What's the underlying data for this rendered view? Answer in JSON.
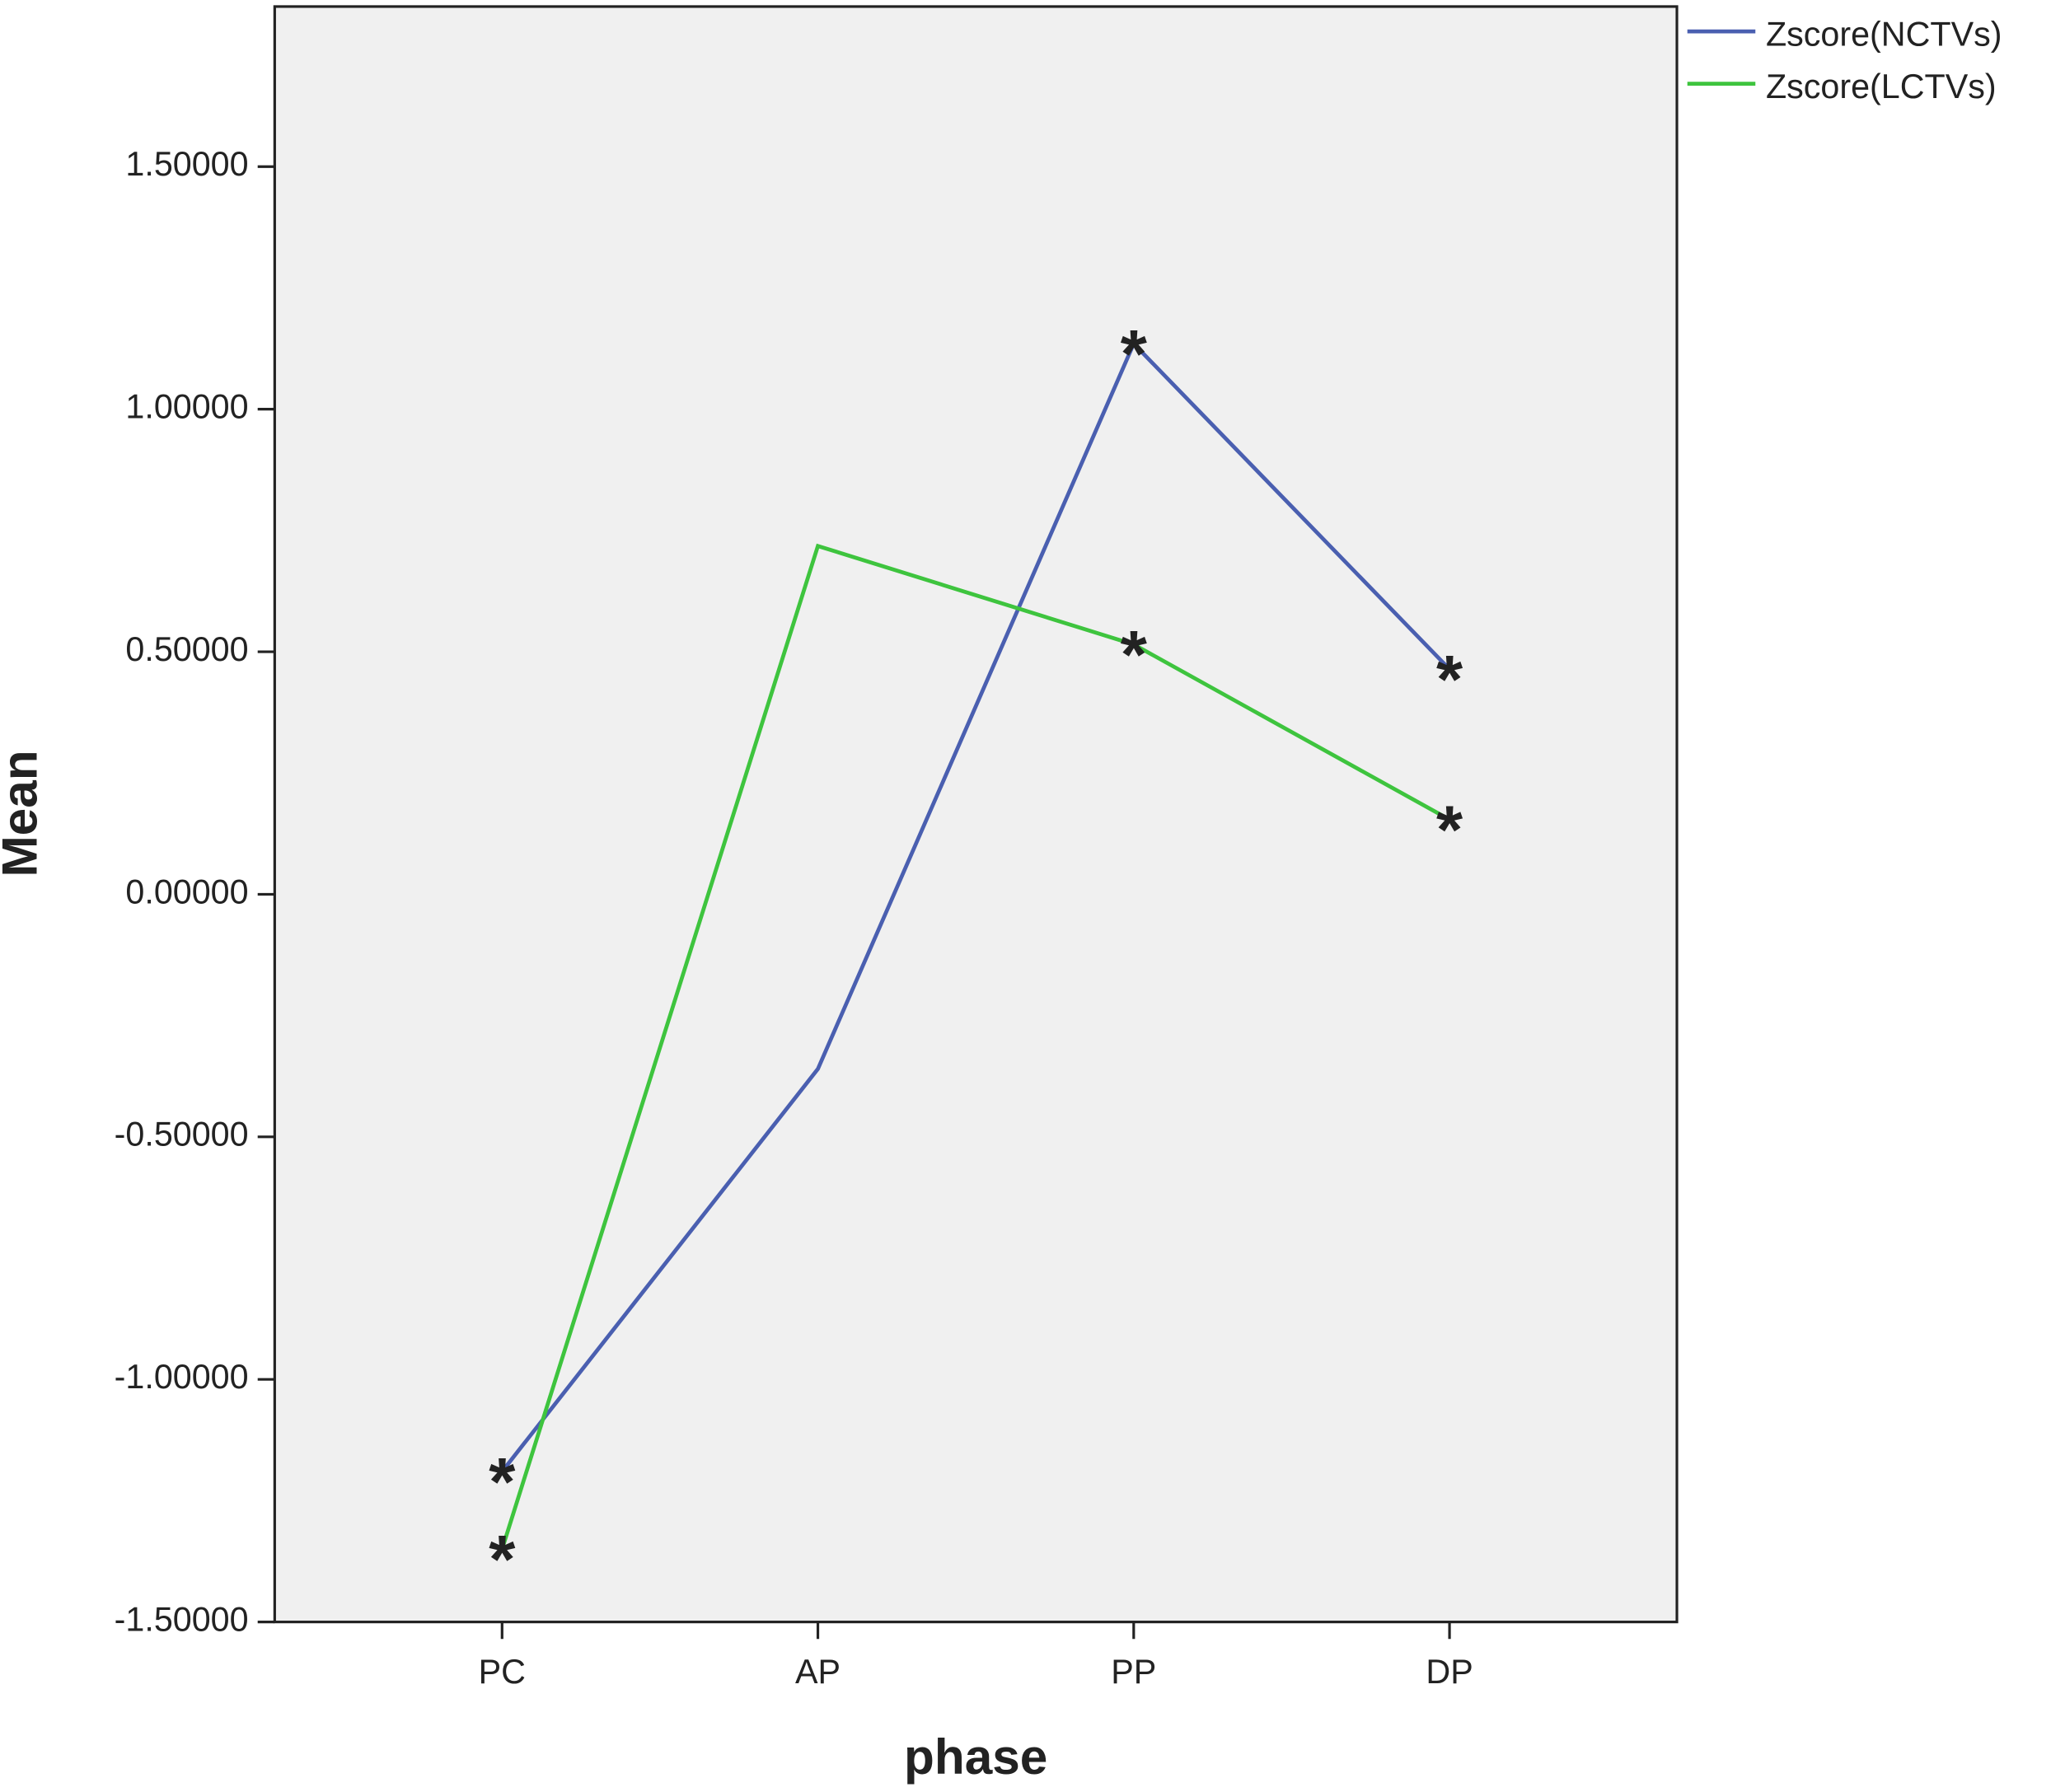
{
  "chart_data": {
    "type": "line",
    "x_label": "phase",
    "y_label": "Mean",
    "categories": [
      "PC",
      "AP",
      "PP",
      "DP"
    ],
    "series": [
      {
        "name": "Zscore(NCTVs)",
        "color": "#4a5fb0",
        "values": [
          -1.19,
          -0.36,
          1.135,
          0.464
        ],
        "marker_labels": [
          "*",
          null,
          "*",
          "*"
        ]
      },
      {
        "name": "Zscore(LCTVs)",
        "color": "#3ec43e",
        "values": [
          -1.35,
          0.718,
          0.515,
          0.154
        ],
        "marker_labels": [
          "*",
          null,
          "*",
          "*"
        ]
      }
    ],
    "ylim": [
      -1.5,
      1.83
    ],
    "yticks": [
      {
        "value": -1.5,
        "label": "-1.50000"
      },
      {
        "value": -1,
        "label": "-1.00000"
      },
      {
        "value": -0.5,
        "label": "-0.50000"
      },
      {
        "value": 0,
        "label": "0.00000"
      },
      {
        "value": 0.5,
        "label": "0.50000"
      },
      {
        "value": 1,
        "label": "1.00000"
      },
      {
        "value": 1.5,
        "label": "1.50000"
      }
    ],
    "legend": "top-right-outside"
  }
}
